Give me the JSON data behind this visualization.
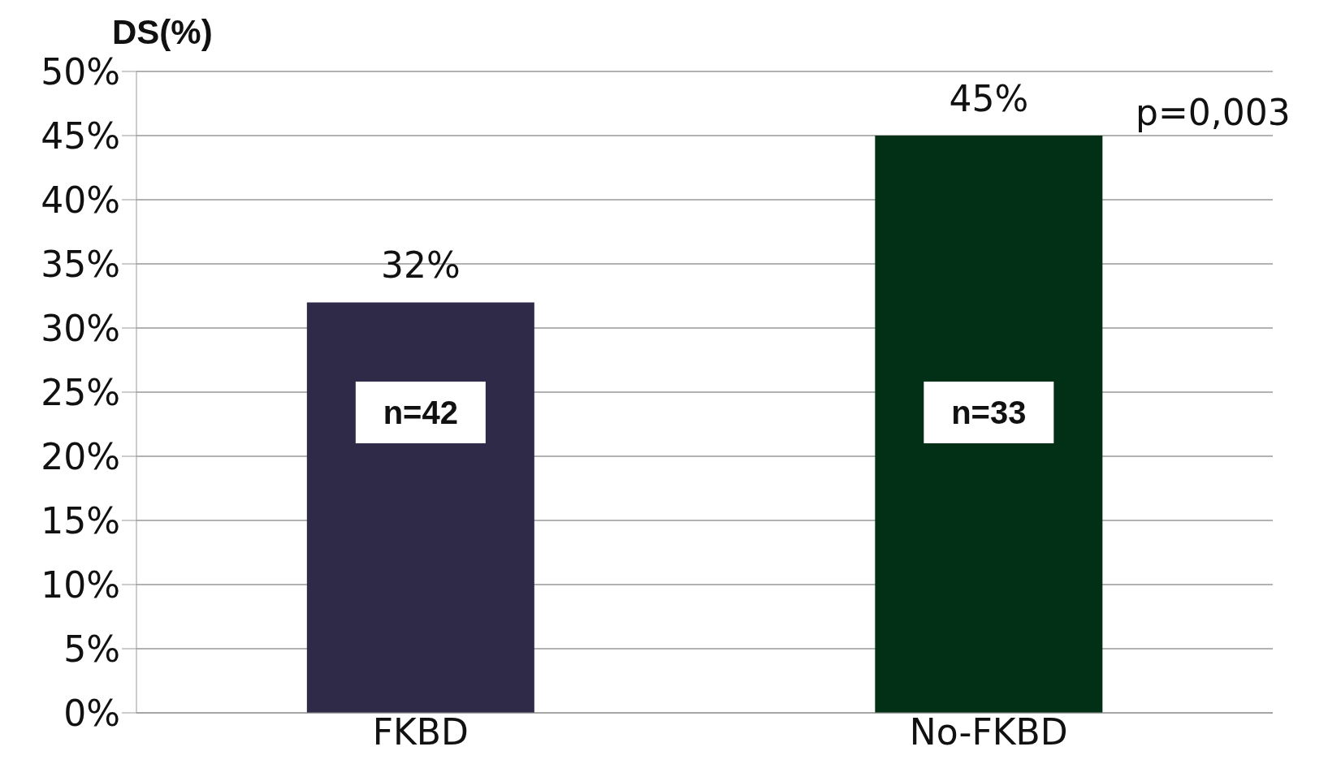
{
  "chart_data": {
    "type": "bar",
    "ylabel": "DS(%)",
    "categories": [
      "FKBD",
      "No-FKBD"
    ],
    "values": [
      32,
      45
    ],
    "colors": [
      "#2e2a47",
      "#023017"
    ],
    "value_labels": [
      "32%",
      "45%"
    ],
    "ylim": [
      0,
      50
    ],
    "yticks": [
      {
        "value": 0,
        "label": "0%"
      },
      {
        "value": 5,
        "label": "5%"
      },
      {
        "value": 10,
        "label": "10%"
      },
      {
        "value": 15,
        "label": "15%"
      },
      {
        "value": 20,
        "label": "20%"
      },
      {
        "value": 25,
        "label": "25%"
      },
      {
        "value": 30,
        "label": "30%"
      },
      {
        "value": 35,
        "label": "35%"
      },
      {
        "value": 40,
        "label": "40%"
      },
      {
        "value": 45,
        "label": "45%"
      },
      {
        "value": 50,
        "label": "50%"
      }
    ],
    "grid": "y",
    "annotations": [
      "n=42",
      "n=33",
      "p=0,003"
    ]
  }
}
